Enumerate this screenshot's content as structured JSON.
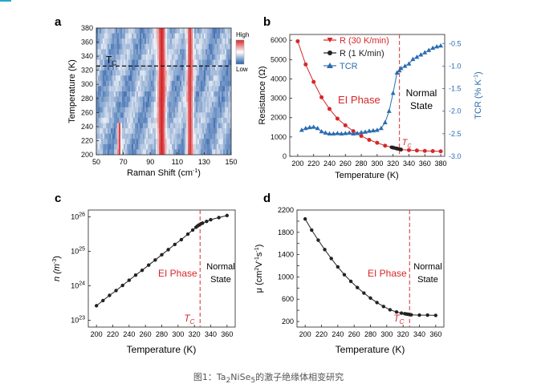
{
  "caption": {
    "prefix": "图1：",
    "formula_main": "Ta",
    "formula_sub1": "2",
    "formula_mid": "NiSe",
    "formula_sub2": "5",
    "suffix": "的激子绝缘体相变研究"
  },
  "colors": {
    "red": "#d62728",
    "dark": "#222222",
    "blue": "#2a6cb0",
    "tc_line": "#d9534f",
    "accent": "#2aa6c9"
  },
  "chart_data": [
    {
      "panel": "a",
      "type": "heatmap",
      "xlabel_main": "Raman Shift (cm",
      "xlabel_sup": "-1",
      "xlabel_end": ")",
      "ylabel": "Temperature (K)",
      "xlim": [
        50,
        150
      ],
      "ylim": [
        200,
        380
      ],
      "xticks": [
        "50",
        "70",
        "90",
        "110",
        "130",
        "150"
      ],
      "yticks": [
        "200",
        "220",
        "240",
        "260",
        "280",
        "300",
        "320",
        "340",
        "360",
        "380"
      ],
      "colorbar": {
        "high": "High",
        "low": "Low"
      },
      "tc_label": "T",
      "tc_sub": "C",
      "tc_value": 326,
      "peaks": [
        {
          "center": 67,
          "width": 1.3,
          "tmax": 246,
          "amp": 0.95
        },
        {
          "center": 98.5,
          "width": 3.5,
          "tmax": 380,
          "amp": 1.0
        },
        {
          "center": 119.5,
          "width": 2.6,
          "tmax": 380,
          "amp": 0.95
        }
      ]
    },
    {
      "panel": "b",
      "type": "line",
      "xlabel": "Temperature (K)",
      "ylabel": "Resistance (Ω)",
      "y2label_main": "TCR (% K",
      "y2label_sup": "-1",
      "y2label_end": ")",
      "xlim": [
        190,
        385
      ],
      "ylim": [
        0,
        6300
      ],
      "y2lim": [
        -3.0,
        -0.3
      ],
      "xticks": [
        "200",
        "220",
        "240",
        "260",
        "280",
        "300",
        "320",
        "340",
        "360",
        "380"
      ],
      "yticks": [
        "0",
        "1000",
        "2000",
        "3000",
        "4000",
        "5000",
        "6000"
      ],
      "y2ticks": [
        "-3.0",
        "-2.5",
        "-2.0",
        "-1.5",
        "-1.0",
        "-0.5"
      ],
      "legend": [
        "R (30 K/min)",
        "R (1 K/min)",
        "TCR"
      ],
      "tc_label": "T",
      "tc_sub": "C",
      "tc_value": 328,
      "phase_left": "EI Phase",
      "phase_right_1": "Normal",
      "phase_right_2": "State",
      "series": [
        {
          "name": "R (30 K/min)",
          "x": [
            200,
            210,
            220,
            230,
            240,
            250,
            260,
            270,
            280,
            290,
            300,
            310,
            320,
            325,
            330,
            340,
            350,
            360,
            370,
            380
          ],
          "values": [
            5950,
            4750,
            3850,
            3050,
            2450,
            1950,
            1600,
            1300,
            1050,
            850,
            700,
            550,
            450,
            400,
            350,
            320,
            300,
            280,
            270,
            260
          ]
        },
        {
          "name": "R (1 K/min)",
          "x": [
            318,
            320,
            322,
            324,
            326,
            328,
            330
          ],
          "values": [
            470,
            450,
            430,
            410,
            390,
            370,
            350
          ]
        },
        {
          "name": "TCR",
          "x": [
            205,
            210,
            215,
            220,
            225,
            230,
            235,
            240,
            245,
            250,
            255,
            260,
            265,
            270,
            275,
            280,
            285,
            290,
            295,
            300,
            305,
            310,
            315,
            320,
            325,
            328,
            330,
            335,
            340,
            345,
            350,
            355,
            360,
            365,
            370,
            375,
            380
          ],
          "values": [
            -2.42,
            -2.38,
            -2.36,
            -2.35,
            -2.38,
            -2.45,
            -2.48,
            -2.5,
            -2.5,
            -2.49,
            -2.5,
            -2.49,
            -2.48,
            -2.5,
            -2.49,
            -2.47,
            -2.46,
            -2.44,
            -2.43,
            -2.42,
            -2.38,
            -2.25,
            -2.0,
            -1.6,
            -1.15,
            -1.1,
            -1.05,
            -1.0,
            -0.95,
            -0.85,
            -0.8,
            -0.75,
            -0.7,
            -0.65,
            -0.6,
            -0.57,
            -0.55
          ]
        }
      ]
    },
    {
      "panel": "c",
      "type": "line",
      "xlabel": "Temperature (K)",
      "ylabel_main": "n (m",
      "ylabel_sup": "-3",
      "ylabel_end": ")",
      "xlim": [
        190,
        370
      ],
      "ylim_log10": [
        22.8,
        26.2
      ],
      "xticks": [
        "200",
        "220",
        "240",
        "260",
        "280",
        "300",
        "320",
        "340",
        "360"
      ],
      "yticks_exp": [
        "23",
        "24",
        "25",
        "26"
      ],
      "tc_label": "T",
      "tc_sub": "C",
      "tc_value": 327,
      "phase_left": "EI Phase",
      "phase_right_1": "Normal",
      "phase_right_2": "State",
      "series": [
        {
          "x": [
            200,
            208,
            216,
            224,
            232,
            240,
            248,
            256,
            264,
            272,
            280,
            288,
            296,
            304,
            312,
            318,
            322,
            324,
            326,
            328,
            330,
            335,
            340,
            350,
            360
          ],
          "log10_values": [
            23.42,
            23.57,
            23.72,
            23.86,
            24.01,
            24.16,
            24.31,
            24.45,
            24.6,
            24.75,
            24.9,
            25.05,
            25.2,
            25.34,
            25.5,
            25.62,
            25.7,
            25.74,
            25.77,
            25.8,
            25.82,
            25.87,
            25.92,
            25.98,
            26.04
          ]
        }
      ]
    },
    {
      "panel": "d",
      "type": "line",
      "xlabel": "Temperature (K)",
      "ylabel_main": "μ (cm",
      "ylabel_sup": "2",
      "ylabel_rest": "V",
      "ylabel_sup2": "-1",
      "ylabel_rest2": "s",
      "ylabel_sup3": "-1",
      "ylabel_end": ")",
      "xlim": [
        190,
        370
      ],
      "ylim": [
        100,
        2200
      ],
      "xticks": [
        "200",
        "220",
        "240",
        "260",
        "280",
        "300",
        "320",
        "340",
        "360"
      ],
      "yticks": [
        "200",
        "400",
        "600",
        "800",
        "1000",
        "1200",
        "1400",
        "1600",
        "1800",
        "2000",
        "2200"
      ],
      "tc_label": "T",
      "tc_sub": "C",
      "tc_value": 328,
      "phase_left": "EI Phase",
      "phase_right_1": "Normal",
      "phase_right_2": "State",
      "series": [
        {
          "x": [
            200,
            208,
            216,
            224,
            232,
            240,
            248,
            256,
            264,
            272,
            280,
            288,
            296,
            304,
            312,
            318,
            322,
            324,
            326,
            328,
            330,
            340,
            350,
            360
          ],
          "values": [
            2040,
            1840,
            1660,
            1490,
            1330,
            1180,
            1040,
            920,
            810,
            710,
            620,
            540,
            470,
            410,
            370,
            350,
            340,
            335,
            330,
            325,
            320,
            315,
            315,
            310
          ]
        }
      ]
    }
  ],
  "labels": {
    "a": "a",
    "b": "b",
    "c": "c",
    "d": "d"
  }
}
